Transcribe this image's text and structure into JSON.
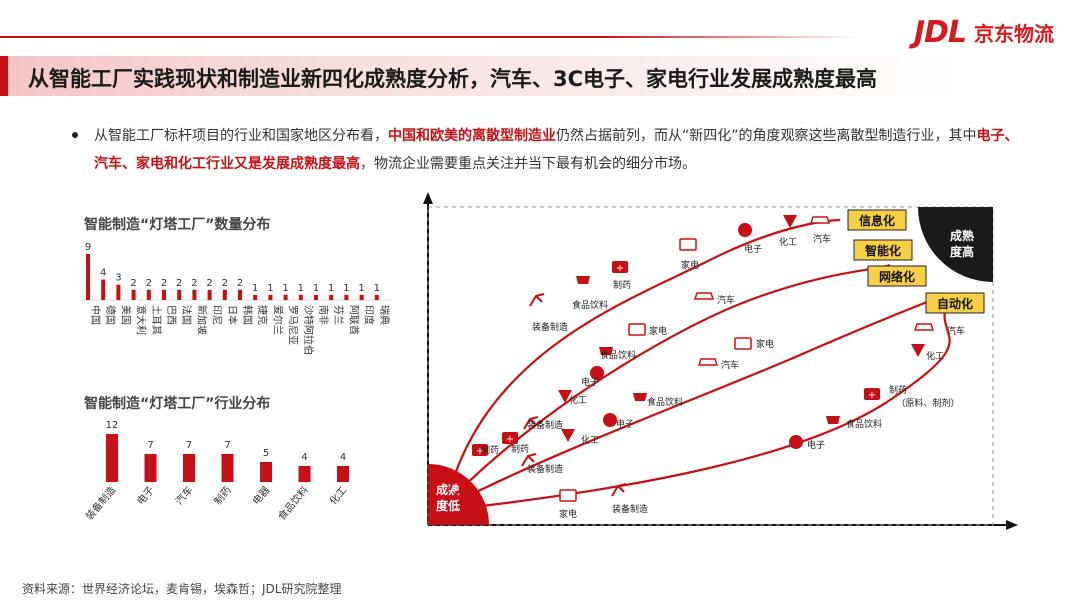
{
  "brand": {
    "logo": "JDL",
    "name": "京东物流"
  },
  "title": "从智能工厂实践现状和制造业新四化成熟度分析，汽车、3C电子、家电行业发展成熟度最高",
  "paragraph": {
    "p1": "从智能工厂标杆项目的行业和国家地区分布看，",
    "h1": "中国和欧美的离散型制造业",
    "p2": "仍然占据前列，而从“新四化”的角度观察这些离散型制造行业，其中",
    "h2": "电子、汽车、家电和化工",
    "h3": "行业又是发展成熟度最高",
    "p3": "，物流企业需要重点关注并当下最有机会的细分市场。"
  },
  "source": "资料来源：世界经济论坛，麦肯锡，埃森哲；JDL研究院整理",
  "colors": {
    "accent": "#c80f16",
    "tag_fill": "#f7cf45",
    "dark": "#1a1a1a"
  },
  "chart_data": [
    {
      "type": "bar",
      "title": "智能制造“灯塔工厂”数量分布",
      "categories": [
        "中国",
        "德国",
        "美国",
        "意大利",
        "土耳其",
        "巴西",
        "法国",
        "新加坡",
        "印尼",
        "日本",
        "韩国",
        "捷克",
        "爱尔兰",
        "罗马尼亚",
        "沙特阿拉伯",
        "南非",
        "芬兰",
        "阿联酋",
        "印度",
        "瑞典"
      ],
      "values": [
        9,
        4,
        3,
        2,
        2,
        2,
        2,
        2,
        2,
        2,
        2,
        1,
        1,
        1,
        1,
        1,
        1,
        1,
        1,
        1
      ]
    },
    {
      "type": "bar",
      "title": "智能制造“灯塔工厂”行业分布",
      "categories": [
        "装备制造",
        "电子",
        "汽车",
        "制药",
        "电器",
        "食品饮料",
        "化工"
      ],
      "values": [
        12,
        7,
        7,
        7,
        5,
        4,
        4
      ]
    },
    {
      "type": "diagram",
      "corner_low": "成熟度低",
      "corner_high": [
        "成熟",
        "度高"
      ],
      "tags": [
        "信息化",
        "智能化",
        "网络化",
        "自动化"
      ],
      "node_labels": {
        "c1": [
          "装备制造",
          "食品饮料",
          "制药",
          "家电",
          "电子",
          "化工",
          "汽车"
        ],
        "c2": [
          "制药",
          "装备制造",
          "化工",
          "电子",
          "食品饮料",
          "家电",
          "汽车",
          "汽车"
        ],
        "c3": [
          "制药",
          "装备制造",
          "化工",
          "电子",
          "食品饮料",
          "家电",
          "汽车",
          "化工",
          "汽车"
        ],
        "c4": [
          "家电",
          "装备制造",
          "电子",
          "食品饮料",
          "制药",
          "（原料、制剂）"
        ]
      }
    }
  ]
}
